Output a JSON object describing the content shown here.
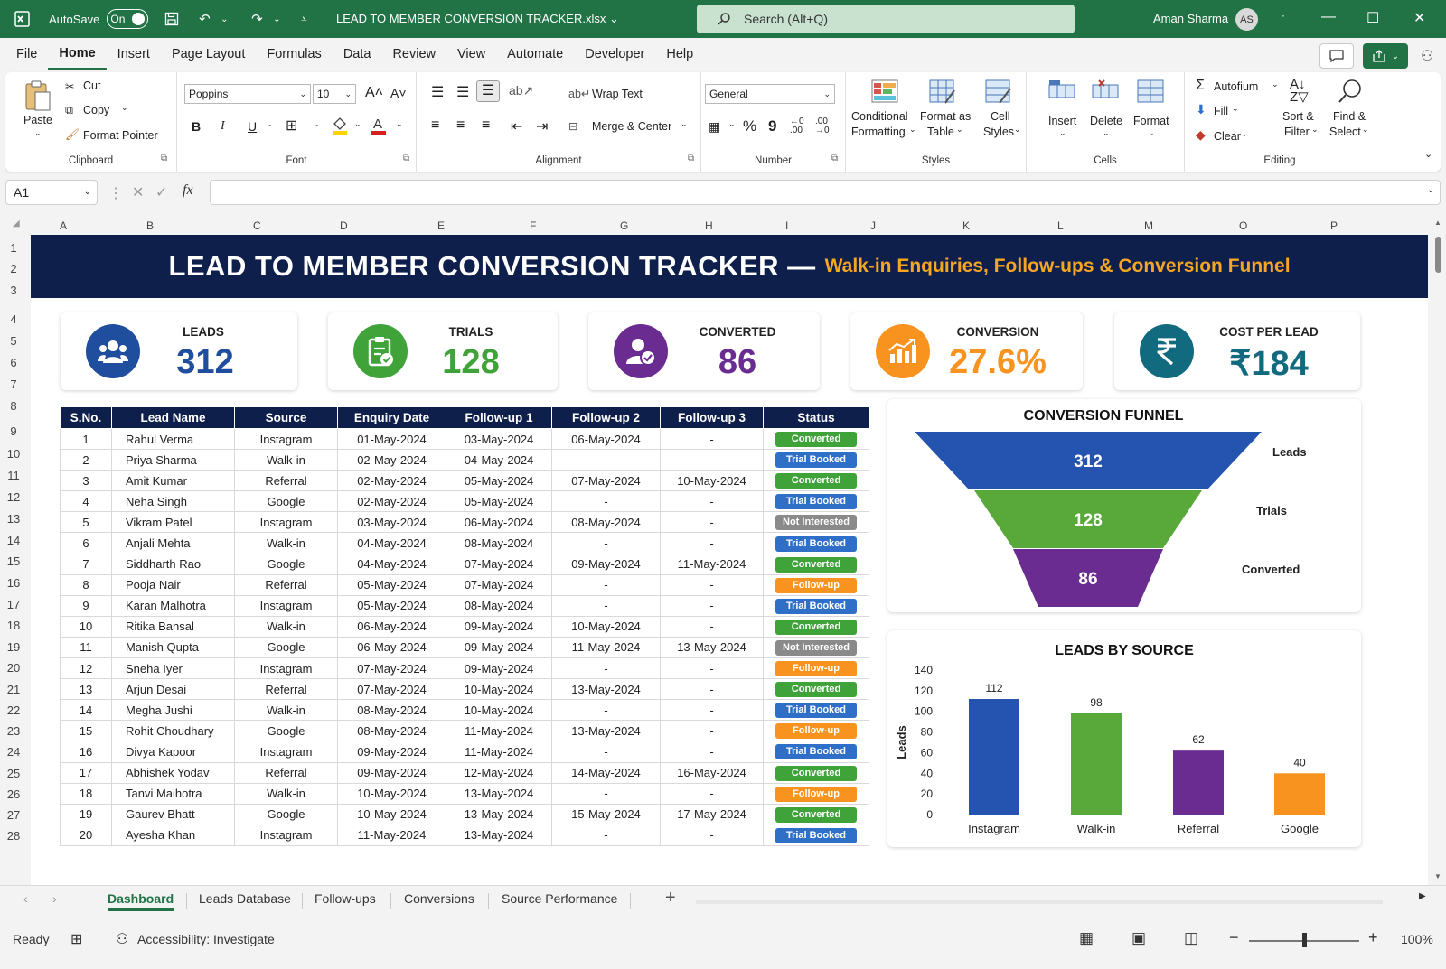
{
  "app": {
    "autosave_label": "AutoSave",
    "autosave_state": "On",
    "filename": "LEAD TO MEMBER CONVERSION TRACKER.xlsx",
    "search_placeholder": "Search (Alt+Q)",
    "user_name": "Aman Sharma",
    "user_initials": "AS"
  },
  "menu": [
    "File",
    "Home",
    "Insert",
    "Page Layout",
    "Formulas",
    "Data",
    "Review",
    "View",
    "Automate",
    "Developer",
    "Help"
  ],
  "ribbon": {
    "clipboard": {
      "label": "Clipboard",
      "paste": "Paste",
      "cut": "Cut",
      "copy": "Copy",
      "format_painter": "Format Pointer"
    },
    "font": {
      "label": "Font",
      "family": "Poppins",
      "size": "10",
      "bold": "B",
      "italic": "I",
      "underline": "U"
    },
    "alignment": {
      "label": "Alignment",
      "wrap": "Wrap Text",
      "merge": "Merge & Center"
    },
    "number": {
      "label": "Number",
      "format": "General",
      "percent": "%",
      "comma": "9"
    },
    "styles": {
      "label": "Styles",
      "conditional": "Conditional",
      "conditional2": "Formatting",
      "format_as": "Format as",
      "format_as2": "Table",
      "cell": "Cell",
      "cell2": "Styles"
    },
    "cells": {
      "label": "Cells",
      "insert": "Insert",
      "delete": "Delete",
      "format": "Format"
    },
    "editing": {
      "label": "Editing",
      "autosum": "Autofium",
      "fill": "Fill",
      "clear": "Clear",
      "sort": "Sort &",
      "sort2": "Filter",
      "find": "Find &",
      "find2": "Select"
    }
  },
  "formula_bar": {
    "name_box": "A1",
    "fx": "fx"
  },
  "columns": [
    "A",
    "B",
    "C",
    "D",
    "E",
    "F",
    "G",
    "H",
    "I",
    "J",
    "K",
    "L",
    "M",
    "O",
    "P"
  ],
  "rows": [
    "1",
    "2",
    "3",
    "4",
    "5",
    "6",
    "7",
    "8",
    "9",
    "10",
    "11",
    "12",
    "13",
    "14",
    "15",
    "16",
    "17",
    "18",
    "19",
    "20",
    "21",
    "22",
    "23",
    "24",
    "25",
    "26",
    "27",
    "28"
  ],
  "banner": {
    "title": "LEAD TO MEMBER CONVERSION TRACKER —",
    "subtitle": "Walk-in Enquiries, Follow-ups & Conversion Funnel"
  },
  "kpis": [
    {
      "label": "LEADS",
      "value": "312",
      "color": "#1f4e9e",
      "icon": "users-icon"
    },
    {
      "label": "TRIALS",
      "value": "128",
      "color": "#3fa33a",
      "icon": "clipboard-check-icon"
    },
    {
      "label": "CONVERTED",
      "value": "86",
      "color": "#6a2c91",
      "icon": "user-check-icon"
    },
    {
      "label": "CONVERSION",
      "value": "27.6%",
      "color": "#f7931e",
      "icon": "bar-chart-icon"
    },
    {
      "label": "COST PER LEAD",
      "value": "₹184",
      "color": "#126a7f",
      "icon": "rupee-icon"
    }
  ],
  "table": {
    "headers": [
      "S.No.",
      "Lead Name",
      "Source",
      "Enquiry Date",
      "Follow-up 1",
      "Follow-up 2",
      "Follow-up 3",
      "Status"
    ],
    "rows": [
      [
        "1",
        "Rahul Verma",
        "Instagram",
        "01-May-2024",
        "03-May-2024",
        "06-May-2024",
        "-",
        "Converted"
      ],
      [
        "2",
        "Priya Sharma",
        "Walk-in",
        "02-May-2024",
        "04-May-2024",
        "-",
        "-",
        "Trial Booked"
      ],
      [
        "3",
        "Amit Kumar",
        "Referral",
        "02-May-2024",
        "05-May-2024",
        "07-May-2024",
        "10-May-2024",
        "Converted"
      ],
      [
        "4",
        "Neha Singh",
        "Google",
        "02-May-2024",
        "05-May-2024",
        "-",
        "-",
        "Trial Booked"
      ],
      [
        "5",
        "Vikram Patel",
        "Instagram",
        "03-May-2024",
        "06-May-2024",
        "08-May-2024",
        "-",
        "Not Interested"
      ],
      [
        "6",
        "Anjali Mehta",
        "Walk-in",
        "04-May-2024",
        "08-May-2024",
        "-",
        "-",
        "Trial Booked"
      ],
      [
        "7",
        "Siddharth Rao",
        "Google",
        "04-May-2024",
        "07-May-2024",
        "09-May-2024",
        "11-May-2024",
        "Converted"
      ],
      [
        "8",
        "Pooja Nair",
        "Referral",
        "05-May-2024",
        "07-May-2024",
        "-",
        "-",
        "Follow-up"
      ],
      [
        "9",
        "Karan Malhotra",
        "Instagram",
        "05-May-2024",
        "08-May-2024",
        "-",
        "-",
        "Trial Booked"
      ],
      [
        "10",
        "Ritika Bansal",
        "Walk-in",
        "06-May-2024",
        "09-May-2024",
        "10-May-2024",
        "-",
        "Converted"
      ],
      [
        "11",
        "Manish Qupta",
        "Google",
        "06-May-2024",
        "09-May-2024",
        "11-May-2024",
        "13-May-2024",
        "Not Interested"
      ],
      [
        "12",
        "Sneha Iyer",
        "Instagram",
        "07-May-2024",
        "09-May-2024",
        "-",
        "-",
        "Follow-up"
      ],
      [
        "13",
        "Arjun Desai",
        "Referral",
        "07-May-2024",
        "10-May-2024",
        "13-May-2024",
        "-",
        "Converted"
      ],
      [
        "14",
        "Megha Jushi",
        "Walk-in",
        "08-May-2024",
        "10-May-2024",
        "-",
        "-",
        "Trial Booked"
      ],
      [
        "15",
        "Rohit Choudhary",
        "Google",
        "08-May-2024",
        "11-May-2024",
        "13-May-2024",
        "-",
        "Follow-up"
      ],
      [
        "16",
        "Divya Kapoor",
        "Instagram",
        "09-May-2024",
        "11-May-2024",
        "-",
        "-",
        "Trial Booked"
      ],
      [
        "17",
        "Abhishek Yodav",
        "Referral",
        "09-May-2024",
        "12-May-2024",
        "14-May-2024",
        "16-May-2024",
        "Converted"
      ],
      [
        "18",
        "Tanvi Maihotra",
        "Walk-in",
        "10-May-2024",
        "13-May-2024",
        "-",
        "-",
        "Follow-up"
      ],
      [
        "19",
        "Gaurev Bhatt",
        "Google",
        "10-May-2024",
        "13-May-2024",
        "15-May-2024",
        "17-May-2024",
        "Converted"
      ],
      [
        "20",
        "Ayesha Khan",
        "Instagram",
        "11-May-2024",
        "13-May-2024",
        "-",
        "-",
        "Trial Booked"
      ]
    ]
  },
  "status_colors": {
    "Converted": "#3fa33a",
    "Trial Booked": "#2f6fc8",
    "Not Interested": "#8a8a8a",
    "Follow-up": "#f7931e"
  },
  "chart_data": [
    {
      "type": "funnel",
      "title": "CONVERSION FUNNEL",
      "categories": [
        "Leads",
        "Trials",
        "Converted"
      ],
      "values": [
        312,
        128,
        86
      ],
      "colors": [
        "#2454b0",
        "#58a83a",
        "#6a2c91"
      ]
    },
    {
      "type": "bar",
      "title": "LEADS BY SOURCE",
      "categories": [
        "Instagram",
        "Walk-in",
        "Referral",
        "Google"
      ],
      "values": [
        112,
        98,
        62,
        40
      ],
      "colors": [
        "#2454b0",
        "#58a83a",
        "#6a2c91",
        "#f7931e"
      ],
      "ylabel": "Leads",
      "xlabel": "",
      "ylim": [
        0,
        140
      ],
      "yticks": [
        0,
        20,
        40,
        60,
        80,
        100,
        120,
        140
      ],
      "grid": false
    }
  ],
  "sheet_tabs": [
    "Dashboard",
    "Leads Database",
    "Follow-ups",
    "Conversions",
    "Source Performance"
  ],
  "status": {
    "ready": "Ready",
    "accessibility": "Accessibility: Investigate",
    "zoom": "100%"
  }
}
